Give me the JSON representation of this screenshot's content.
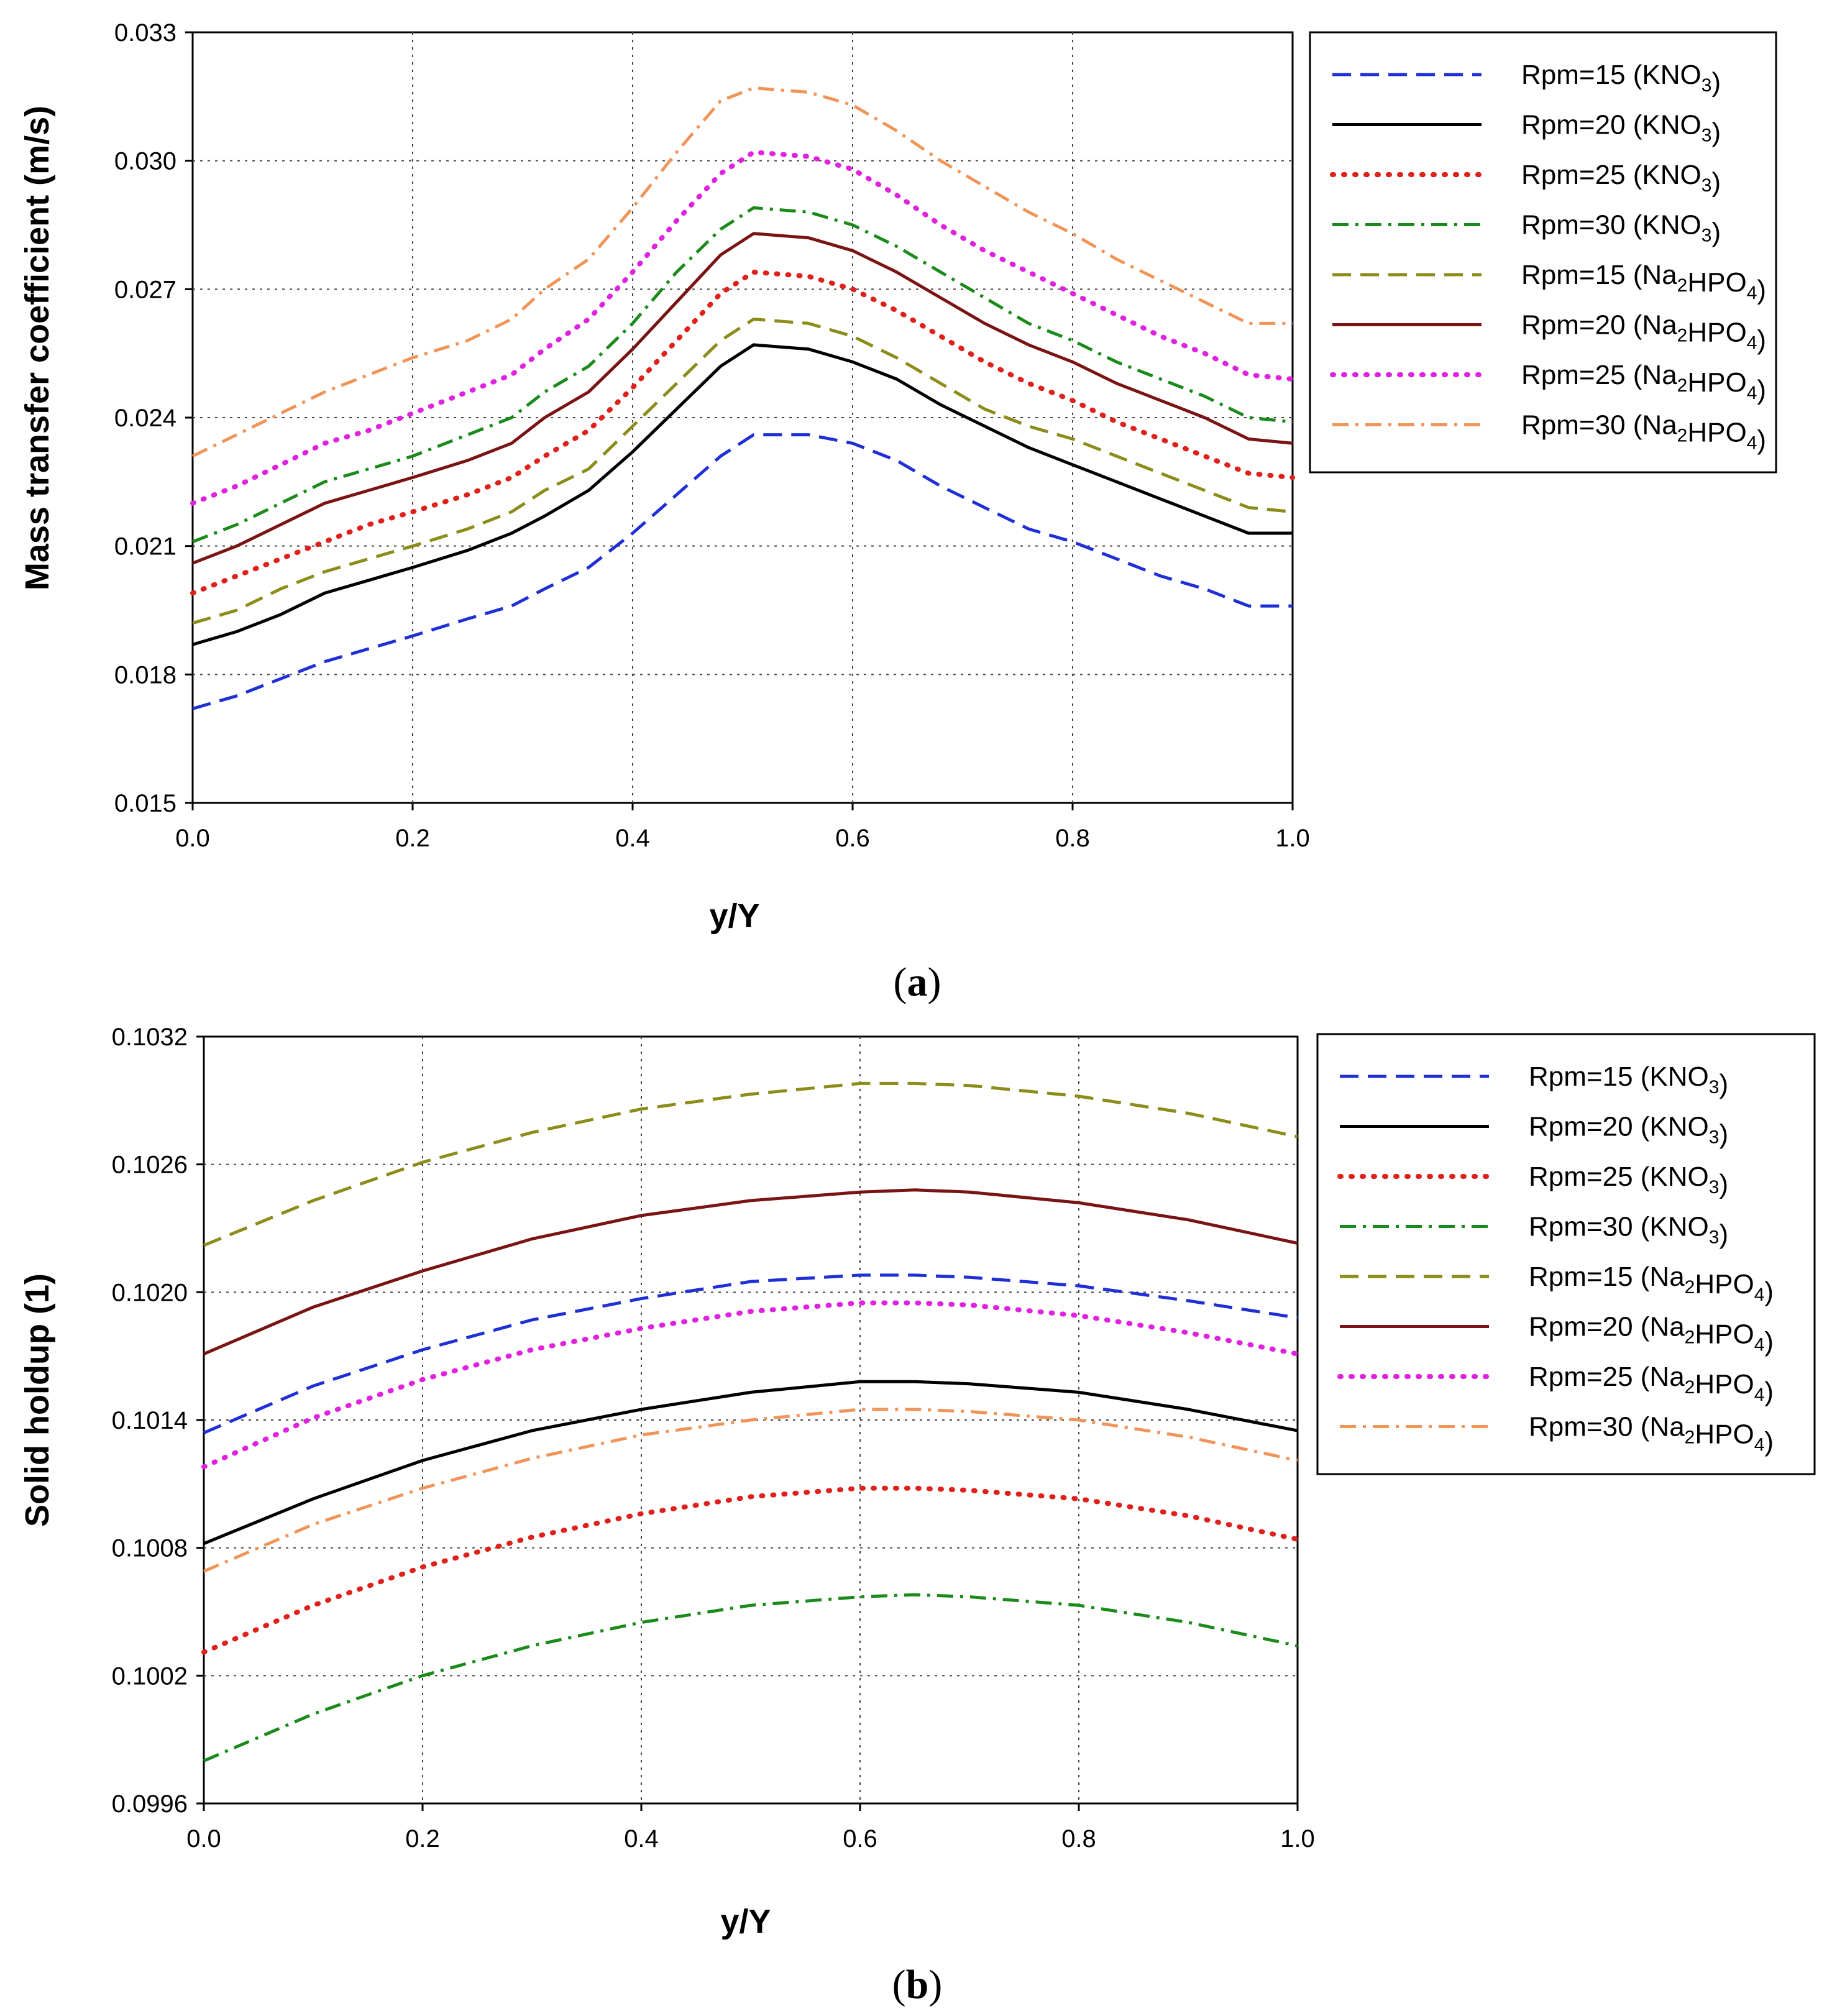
{
  "chart_data": [
    {
      "type": "line",
      "panel_label": "a",
      "xlabel": "y/Y",
      "ylabel": "Mass transfer coefficient (m/s)",
      "xlim": [
        0.0,
        1.0
      ],
      "ylim": [
        0.015,
        0.033
      ],
      "x_ticks": [
        "0.0",
        "0.2",
        "0.4",
        "0.6",
        "0.8",
        "1.0"
      ],
      "y_ticks": [
        "0.015",
        "0.018",
        "0.021",
        "0.024",
        "0.027",
        "0.030",
        "0.033"
      ],
      "grid": true,
      "legend_position": "right",
      "x": [
        0.0,
        0.04,
        0.08,
        0.12,
        0.16,
        0.2,
        0.25,
        0.29,
        0.32,
        0.36,
        0.4,
        0.44,
        0.48,
        0.51,
        0.56,
        0.6,
        0.64,
        0.68,
        0.72,
        0.76,
        0.8,
        0.84,
        0.88,
        0.92,
        0.96,
        1.0
      ],
      "series": [
        {
          "name": "Rpm=15 (KNO3)",
          "label_pre": "Rpm=15 (KNO",
          "label_sub": "3",
          "label_post": ")",
          "color": "#1f2fd6",
          "dash": "dash",
          "values": [
            0.0172,
            0.0175,
            0.0179,
            0.0183,
            0.0186,
            0.0189,
            0.0193,
            0.0196,
            0.02,
            0.0205,
            0.0213,
            0.0222,
            0.0231,
            0.0236,
            0.0236,
            0.0234,
            0.023,
            0.0224,
            0.0219,
            0.0214,
            0.0211,
            0.0207,
            0.0203,
            0.02,
            0.0196,
            0.0196
          ]
        },
        {
          "name": "Rpm=20 (KNO3)",
          "label_pre": "Rpm=20 (KNO",
          "label_sub": "3",
          "label_post": ")",
          "color": "#000000",
          "dash": "solid",
          "values": [
            0.0187,
            0.019,
            0.0194,
            0.0199,
            0.0202,
            0.0205,
            0.0209,
            0.0213,
            0.0217,
            0.0223,
            0.0232,
            0.0242,
            0.0252,
            0.0257,
            0.0256,
            0.0253,
            0.0249,
            0.0243,
            0.0238,
            0.0233,
            0.0229,
            0.0225,
            0.0221,
            0.0217,
            0.0213,
            0.0213
          ]
        },
        {
          "name": "Rpm=25 (KNO3)",
          "label_pre": "Rpm=25 (KNO",
          "label_sub": "3",
          "label_post": ")",
          "color": "#e0201b",
          "dash": "dot",
          "values": [
            0.0199,
            0.0203,
            0.0207,
            0.0211,
            0.0215,
            0.0218,
            0.0222,
            0.0226,
            0.0231,
            0.0237,
            0.0247,
            0.0258,
            0.0269,
            0.0274,
            0.0273,
            0.027,
            0.0265,
            0.0259,
            0.0253,
            0.0248,
            0.0244,
            0.0239,
            0.0235,
            0.0231,
            0.0227,
            0.0226
          ]
        },
        {
          "name": "Rpm=30 (KNO3)",
          "label_pre": "Rpm=30 (KNO",
          "label_sub": "3",
          "label_post": ")",
          "color": "#1a8a1a",
          "dash": "dashdot",
          "values": [
            0.0211,
            0.0215,
            0.022,
            0.0225,
            0.0228,
            0.0231,
            0.0236,
            0.024,
            0.0246,
            0.0252,
            0.0262,
            0.0274,
            0.0284,
            0.0289,
            0.0288,
            0.0285,
            0.028,
            0.0274,
            0.0268,
            0.0262,
            0.0258,
            0.0253,
            0.0249,
            0.0245,
            0.024,
            0.0239
          ]
        },
        {
          "name": "Rpm=15 (Na2HPO4)",
          "label_pre": "Rpm=15 (Na",
          "label_sub": "2",
          "label_mid": "HPO",
          "label_sub2": "4",
          "label_post": ")",
          "color": "#8c8c1a",
          "dash": "dash",
          "values": [
            0.0192,
            0.0195,
            0.02,
            0.0204,
            0.0207,
            0.021,
            0.0214,
            0.0218,
            0.0223,
            0.0228,
            0.0238,
            0.0248,
            0.0258,
            0.0263,
            0.0262,
            0.0259,
            0.0254,
            0.0248,
            0.0242,
            0.0238,
            0.0235,
            0.0231,
            0.0227,
            0.0223,
            0.0219,
            0.0218
          ]
        },
        {
          "name": "Rpm=20 (Na2HPO4)",
          "label_pre": "Rpm=20 (Na",
          "label_sub": "2",
          "label_mid": "HPO",
          "label_sub2": "4",
          "label_post": ")",
          "color": "#7a1414",
          "dash": "solid",
          "values": [
            0.0206,
            0.021,
            0.0215,
            0.022,
            0.0223,
            0.0226,
            0.023,
            0.0234,
            0.024,
            0.0246,
            0.0256,
            0.0267,
            0.0278,
            0.0283,
            0.0282,
            0.0279,
            0.0274,
            0.0268,
            0.0262,
            0.0257,
            0.0253,
            0.0248,
            0.0244,
            0.024,
            0.0235,
            0.0234
          ]
        },
        {
          "name": "Rpm=25 (Na2HPO4)",
          "label_pre": "Rpm=25 (Na",
          "label_sub": "2",
          "label_mid": "HPO",
          "label_sub2": "4",
          "label_post": ")",
          "color": "#e022e0",
          "dash": "dot",
          "values": [
            0.022,
            0.0224,
            0.0229,
            0.0234,
            0.0237,
            0.0241,
            0.0246,
            0.025,
            0.0256,
            0.0263,
            0.0274,
            0.0286,
            0.0297,
            0.0302,
            0.0301,
            0.0298,
            0.0292,
            0.0285,
            0.0279,
            0.0274,
            0.0269,
            0.0264,
            0.0259,
            0.0255,
            0.025,
            0.0249
          ]
        },
        {
          "name": "Rpm=30 (Na2HPO4)",
          "label_pre": "Rpm=30 (Na",
          "label_sub": "2",
          "label_mid": "HPO",
          "label_sub2": "4",
          "label_post": ")",
          "color": "#f0955a",
          "dash": "dashdot",
          "values": [
            0.0231,
            0.0236,
            0.0241,
            0.0246,
            0.025,
            0.0254,
            0.0258,
            0.0263,
            0.027,
            0.0277,
            0.0289,
            0.0302,
            0.0314,
            0.0317,
            0.0316,
            0.0313,
            0.0307,
            0.03,
            0.0294,
            0.0288,
            0.0283,
            0.0277,
            0.0272,
            0.0267,
            0.0262,
            0.0262
          ]
        }
      ]
    },
    {
      "type": "line",
      "panel_label": "b",
      "xlabel": "y/Y",
      "ylabel": "Solid holdup (1)",
      "xlim": [
        0.0,
        1.0
      ],
      "ylim": [
        0.0996,
        0.1032
      ],
      "x_ticks": [
        "0.0",
        "0.2",
        "0.4",
        "0.6",
        "0.8",
        "1.0"
      ],
      "y_ticks": [
        "0.0996",
        "0.1002",
        "0.1008",
        "0.1014",
        "0.1020",
        "0.1026",
        "0.1032"
      ],
      "grid": true,
      "legend_position": "right",
      "x": [
        0.0,
        0.1,
        0.2,
        0.3,
        0.4,
        0.5,
        0.6,
        0.65,
        0.7,
        0.8,
        0.9,
        1.0
      ],
      "series": [
        {
          "name": "Rpm=15 (KNO3)",
          "label_pre": "Rpm=15 (KNO",
          "label_sub": "3",
          "label_post": ")",
          "color": "#1f2fd6",
          "dash": "dash",
          "values": [
            0.10134,
            0.10156,
            0.10173,
            0.10187,
            0.10197,
            0.10205,
            0.10208,
            0.10208,
            0.10207,
            0.10203,
            0.10196,
            0.10188
          ]
        },
        {
          "name": "Rpm=20 (KNO3)",
          "label_pre": "Rpm=20 (KNO",
          "label_sub": "3",
          "label_post": ")",
          "color": "#000000",
          "dash": "solid",
          "values": [
            0.10082,
            0.10103,
            0.10121,
            0.10135,
            0.10145,
            0.10153,
            0.10158,
            0.10158,
            0.10157,
            0.10153,
            0.10145,
            0.10135
          ]
        },
        {
          "name": "Rpm=25 (KNO3)",
          "label_pre": "Rpm=25 (KNO",
          "label_sub": "3",
          "label_post": ")",
          "color": "#e0201b",
          "dash": "dot",
          "values": [
            0.10031,
            0.10053,
            0.10071,
            0.10085,
            0.10096,
            0.10104,
            0.10108,
            0.10108,
            0.10107,
            0.10103,
            0.10095,
            0.10084
          ]
        },
        {
          "name": "Rpm=30 (KNO3)",
          "label_pre": "Rpm=30 (KNO",
          "label_sub": "3",
          "label_post": ")",
          "color": "#1a8a1a",
          "dash": "dashdot",
          "values": [
            0.0998,
            0.10002,
            0.1002,
            0.10034,
            0.10045,
            0.10053,
            0.10057,
            0.10058,
            0.10057,
            0.10053,
            0.10045,
            0.10034
          ]
        },
        {
          "name": "Rpm=15 (Na2HPO4)",
          "label_pre": "Rpm=15 (Na",
          "label_sub": "2",
          "label_mid": "HPO",
          "label_sub2": "4",
          "label_post": ")",
          "color": "#8c8c1a",
          "dash": "dash",
          "values": [
            0.10222,
            0.10243,
            0.10261,
            0.10275,
            0.10286,
            0.10293,
            0.10298,
            0.10298,
            0.10297,
            0.10292,
            0.10284,
            0.10273
          ]
        },
        {
          "name": "Rpm=20 (Na2HPO4)",
          "label_pre": "Rpm=20 (Na",
          "label_sub": "2",
          "label_mid": "HPO",
          "label_sub2": "4",
          "label_post": ")",
          "color": "#7a1414",
          "dash": "solid",
          "values": [
            0.10171,
            0.10193,
            0.1021,
            0.10225,
            0.10236,
            0.10243,
            0.10247,
            0.10248,
            0.10247,
            0.10242,
            0.10234,
            0.10223
          ]
        },
        {
          "name": "Rpm=25 (Na2HPO4)",
          "label_pre": "Rpm=25 (Na",
          "label_sub": "2",
          "label_mid": "HPO",
          "label_sub2": "4",
          "label_post": ")",
          "color": "#e022e0",
          "dash": "dot",
          "values": [
            0.10118,
            0.10141,
            0.10159,
            0.10173,
            0.10183,
            0.10191,
            0.10195,
            0.10195,
            0.10194,
            0.10189,
            0.10181,
            0.10171
          ]
        },
        {
          "name": "Rpm=30 (Na2HPO4)",
          "label_pre": "Rpm=30 (Na",
          "label_sub": "2",
          "label_mid": "HPO",
          "label_sub2": "4",
          "label_post": ")",
          "color": "#f0955a",
          "dash": "dashdot",
          "values": [
            0.10069,
            0.10091,
            0.10108,
            0.10122,
            0.10133,
            0.1014,
            0.10145,
            0.10145,
            0.10144,
            0.1014,
            0.10132,
            0.10121
          ]
        }
      ]
    }
  ]
}
